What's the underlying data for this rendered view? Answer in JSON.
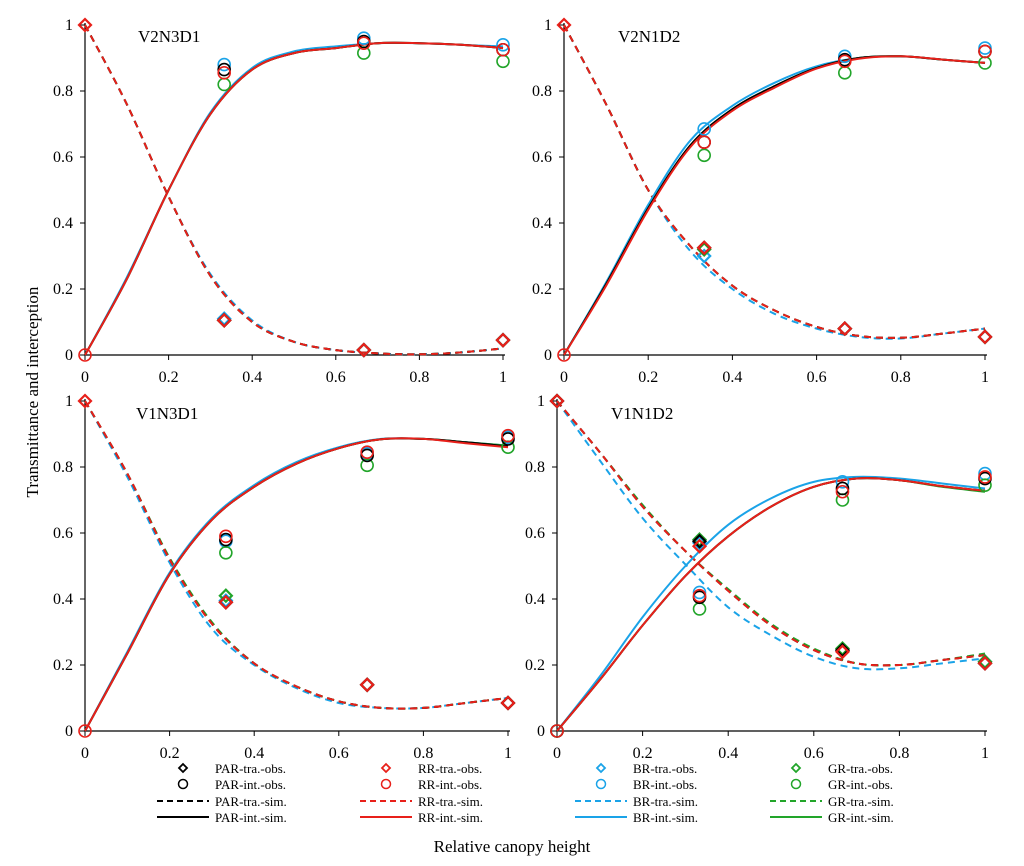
{
  "chart_data": {
    "type": "line",
    "xlabel": "Relative canopy  height",
    "ylabel": "Transmittance and interception",
    "xlim": [
      0,
      1
    ],
    "ylim": [
      0,
      1
    ],
    "xticks": [
      "0",
      "0.2",
      "0.4",
      "0.6",
      "0.8",
      "1"
    ],
    "yticks": [
      "0",
      "0.2",
      "0.4",
      "0.6",
      "0.8",
      "1"
    ],
    "colors": {
      "PAR": "#000000",
      "RR": "#e8201a",
      "BR": "#1aa3e8",
      "GR": "#22a52a"
    },
    "legend": [
      {
        "series": "PAR",
        "kind": "tra-obs",
        "label": "PAR-tra.-obs."
      },
      {
        "series": "RR",
        "kind": "tra-obs",
        "label": "RR-tra.-obs."
      },
      {
        "series": "BR",
        "kind": "tra-obs",
        "label": "BR-tra.-obs."
      },
      {
        "series": "GR",
        "kind": "tra-obs",
        "label": "GR-tra.-obs."
      },
      {
        "series": "PAR",
        "kind": "int-obs",
        "label": "PAR-int.-obs."
      },
      {
        "series": "RR",
        "kind": "int-obs",
        "label": "RR-int.-obs."
      },
      {
        "series": "BR",
        "kind": "int-obs",
        "label": "BR-int.-obs."
      },
      {
        "series": "GR",
        "kind": "int-obs",
        "label": "GR-int.-obs."
      },
      {
        "series": "PAR",
        "kind": "tra-sim",
        "label": "PAR-tra.-sim."
      },
      {
        "series": "RR",
        "kind": "tra-sim",
        "label": "RR-tra.-sim."
      },
      {
        "series": "BR",
        "kind": "tra-sim",
        "label": "BR-tra.-sim."
      },
      {
        "series": "GR",
        "kind": "tra-sim",
        "label": "GR-tra.-sim."
      },
      {
        "series": "PAR",
        "kind": "int-sim",
        "label": "PAR-int.-sim."
      },
      {
        "series": "RR",
        "kind": "int-sim",
        "label": "RR-int.-sim."
      },
      {
        "series": "BR",
        "kind": "int-sim",
        "label": "BR-int.-sim."
      },
      {
        "series": "GR",
        "kind": "int-sim",
        "label": "GR-int.-sim."
      }
    ],
    "panels": [
      {
        "title": "V2N3D1",
        "obs_x": [
          0,
          0.333,
          0.667,
          1
        ],
        "tra_obs": {
          "BR": [
            1,
            0.11,
            0.015,
            0.045
          ],
          "GR": [
            1,
            0.105,
            0.015,
            0.045
          ],
          "PAR": [
            1,
            0.105,
            0.015,
            0.045
          ],
          "RR": [
            1,
            0.105,
            0.015,
            0.045
          ]
        },
        "int_obs": {
          "BR": [
            0,
            0.88,
            0.96,
            0.94
          ],
          "GR": [
            0,
            0.82,
            0.915,
            0.89
          ],
          "PAR": [
            0,
            0.865,
            0.95,
            0.925
          ],
          "RR": [
            0,
            0.855,
            0.945,
            0.925
          ]
        },
        "sim_x": [
          0,
          0.1,
          0.2,
          0.3,
          0.4,
          0.5,
          0.6,
          0.7,
          0.8,
          0.9,
          1
        ],
        "tra_sim": {
          "BR": [
            1,
            0.76,
            0.48,
            0.245,
            0.105,
            0.04,
            0.015,
            0.005,
            0.002,
            0.008,
            0.02
          ],
          "GR": [
            1,
            0.76,
            0.48,
            0.24,
            0.1,
            0.04,
            0.015,
            0.005,
            0.002,
            0.008,
            0.02
          ],
          "PAR": [
            1,
            0.76,
            0.48,
            0.24,
            0.1,
            0.04,
            0.015,
            0.005,
            0.002,
            0.008,
            0.02
          ],
          "RR": [
            1,
            0.76,
            0.48,
            0.24,
            0.1,
            0.04,
            0.015,
            0.005,
            0.002,
            0.008,
            0.02
          ]
        },
        "int_sim": {
          "BR": [
            0,
            0.235,
            0.5,
            0.735,
            0.87,
            0.92,
            0.935,
            0.945,
            0.945,
            0.94,
            0.935
          ],
          "GR": [
            0,
            0.23,
            0.5,
            0.73,
            0.865,
            0.915,
            0.93,
            0.945,
            0.945,
            0.94,
            0.93
          ],
          "PAR": [
            0,
            0.23,
            0.5,
            0.73,
            0.865,
            0.915,
            0.93,
            0.945,
            0.945,
            0.94,
            0.93
          ],
          "RR": [
            0,
            0.23,
            0.5,
            0.73,
            0.865,
            0.915,
            0.93,
            0.945,
            0.945,
            0.94,
            0.93
          ]
        }
      },
      {
        "title": "V2N1D2",
        "obs_x": [
          0,
          0.333,
          0.667,
          1
        ],
        "tra_obs": {
          "BR": [
            1,
            0.3,
            0.08,
            0.055
          ],
          "GR": [
            1,
            0.32,
            0.08,
            0.055
          ],
          "PAR": [
            1,
            0.325,
            0.08,
            0.055
          ],
          "RR": [
            1,
            0.325,
            0.08,
            0.055
          ]
        },
        "int_obs": {
          "BR": [
            0,
            0.685,
            0.905,
            0.93
          ],
          "GR": [
            0,
            0.605,
            0.855,
            0.885
          ],
          "PAR": [
            0,
            0.645,
            0.895,
            0.92
          ],
          "RR": [
            0,
            0.645,
            0.89,
            0.92
          ]
        },
        "sim_x": [
          0,
          0.1,
          0.2,
          0.3,
          0.4,
          0.5,
          0.6,
          0.7,
          0.8,
          0.9,
          1
        ],
        "tra_sim": {
          "BR": [
            1,
            0.76,
            0.5,
            0.315,
            0.2,
            0.125,
            0.08,
            0.055,
            0.05,
            0.065,
            0.08
          ],
          "GR": [
            1,
            0.76,
            0.5,
            0.33,
            0.21,
            0.135,
            0.085,
            0.058,
            0.052,
            0.065,
            0.08
          ],
          "PAR": [
            1,
            0.76,
            0.5,
            0.33,
            0.21,
            0.135,
            0.085,
            0.058,
            0.052,
            0.065,
            0.08
          ],
          "RR": [
            1,
            0.76,
            0.5,
            0.33,
            0.21,
            0.135,
            0.085,
            0.058,
            0.052,
            0.065,
            0.08
          ]
        },
        "int_sim": {
          "BR": [
            0,
            0.22,
            0.455,
            0.65,
            0.755,
            0.825,
            0.875,
            0.9,
            0.905,
            0.895,
            0.885
          ],
          "GR": [
            0,
            0.215,
            0.445,
            0.635,
            0.745,
            0.815,
            0.87,
            0.9,
            0.905,
            0.895,
            0.885
          ],
          "PAR": [
            0,
            0.215,
            0.445,
            0.635,
            0.745,
            0.815,
            0.87,
            0.9,
            0.905,
            0.895,
            0.885
          ],
          "RR": [
            0,
            0.21,
            0.44,
            0.63,
            0.74,
            0.81,
            0.868,
            0.898,
            0.905,
            0.895,
            0.885
          ]
        }
      },
      {
        "title": "V1N3D1",
        "obs_x": [
          0,
          0.333,
          0.667,
          1
        ],
        "tra_obs": {
          "BR": [
            1,
            0.395,
            0.14,
            0.085
          ],
          "GR": [
            1,
            0.41,
            0.14,
            0.085
          ],
          "PAR": [
            1,
            0.39,
            0.14,
            0.085
          ],
          "RR": [
            1,
            0.39,
            0.14,
            0.085
          ]
        },
        "int_obs": {
          "BR": [
            0,
            0.575,
            0.84,
            0.89
          ],
          "GR": [
            0,
            0.54,
            0.805,
            0.86
          ],
          "PAR": [
            0,
            0.58,
            0.835,
            0.885
          ],
          "RR": [
            0,
            0.59,
            0.845,
            0.895
          ]
        },
        "sim_x": [
          0,
          0.1,
          0.2,
          0.3,
          0.4,
          0.5,
          0.6,
          0.7,
          0.8,
          0.9,
          1
        ],
        "tra_sim": {
          "BR": [
            1,
            0.77,
            0.51,
            0.31,
            0.2,
            0.13,
            0.085,
            0.07,
            0.07,
            0.085,
            0.1
          ],
          "GR": [
            1,
            0.78,
            0.525,
            0.33,
            0.205,
            0.135,
            0.09,
            0.07,
            0.07,
            0.085,
            0.1
          ],
          "PAR": [
            1,
            0.78,
            0.52,
            0.325,
            0.205,
            0.135,
            0.09,
            0.07,
            0.07,
            0.085,
            0.1
          ],
          "RR": [
            1,
            0.78,
            0.52,
            0.325,
            0.205,
            0.135,
            0.09,
            0.07,
            0.07,
            0.085,
            0.1
          ]
        },
        "int_sim": {
          "BR": [
            0,
            0.24,
            0.48,
            0.645,
            0.745,
            0.815,
            0.86,
            0.885,
            0.885,
            0.875,
            0.865
          ],
          "GR": [
            0,
            0.235,
            0.475,
            0.64,
            0.74,
            0.81,
            0.857,
            0.884,
            0.885,
            0.875,
            0.865
          ],
          "PAR": [
            0,
            0.235,
            0.475,
            0.64,
            0.74,
            0.81,
            0.857,
            0.884,
            0.885,
            0.875,
            0.862
          ],
          "RR": [
            0,
            0.235,
            0.475,
            0.64,
            0.74,
            0.81,
            0.857,
            0.884,
            0.885,
            0.872,
            0.86
          ]
        }
      },
      {
        "title": "V1N1D2",
        "obs_x": [
          0,
          0.333,
          0.667,
          1
        ],
        "tra_obs": {
          "BR": [
            1,
            0.57,
            0.245,
            0.21
          ],
          "GR": [
            1,
            0.58,
            0.25,
            0.21
          ],
          "PAR": [
            1,
            0.575,
            0.245,
            0.205
          ],
          "RR": [
            1,
            0.56,
            0.24,
            0.205
          ]
        },
        "int_obs": {
          "BR": [
            0,
            0.42,
            0.755,
            0.78
          ],
          "GR": [
            0,
            0.37,
            0.7,
            0.745
          ],
          "PAR": [
            0,
            0.405,
            0.735,
            0.765
          ],
          "RR": [
            0,
            0.41,
            0.725,
            0.77
          ]
        },
        "sim_x": [
          0,
          0.1,
          0.2,
          0.3,
          0.4,
          0.5,
          0.6,
          0.7,
          0.8,
          0.9,
          1
        ],
        "tra_sim": {
          "BR": [
            1,
            0.82,
            0.645,
            0.505,
            0.375,
            0.29,
            0.225,
            0.19,
            0.19,
            0.205,
            0.22
          ],
          "GR": [
            1,
            0.845,
            0.685,
            0.545,
            0.43,
            0.325,
            0.25,
            0.205,
            0.2,
            0.215,
            0.235
          ],
          "PAR": [
            1,
            0.845,
            0.68,
            0.545,
            0.425,
            0.32,
            0.245,
            0.205,
            0.2,
            0.215,
            0.23
          ],
          "RR": [
            1,
            0.845,
            0.68,
            0.545,
            0.425,
            0.32,
            0.245,
            0.205,
            0.2,
            0.215,
            0.23
          ]
        },
        "int_sim": {
          "BR": [
            0,
            0.165,
            0.345,
            0.5,
            0.625,
            0.705,
            0.755,
            0.77,
            0.765,
            0.75,
            0.735
          ],
          "GR": [
            0,
            0.155,
            0.32,
            0.47,
            0.59,
            0.68,
            0.74,
            0.765,
            0.76,
            0.74,
            0.725
          ],
          "PAR": [
            0,
            0.155,
            0.32,
            0.47,
            0.59,
            0.68,
            0.74,
            0.765,
            0.76,
            0.742,
            0.728
          ],
          "RR": [
            0,
            0.155,
            0.32,
            0.47,
            0.59,
            0.68,
            0.74,
            0.765,
            0.76,
            0.742,
            0.728
          ]
        }
      }
    ]
  }
}
